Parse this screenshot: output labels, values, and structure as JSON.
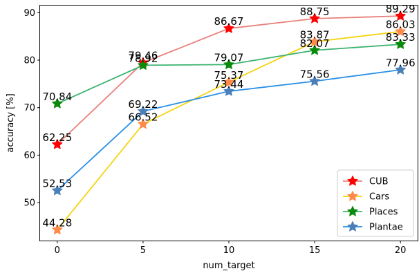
{
  "chart_data": {
    "type": "line",
    "x": [
      0,
      5,
      10,
      15,
      20
    ],
    "xlabel": "num_target",
    "ylabel": "accuracy [%]",
    "xlim": [
      -1,
      21
    ],
    "ylim": [
      42,
      91.5
    ],
    "xticks": [
      "0",
      "5",
      "10",
      "15",
      "20"
    ],
    "yticks": [
      "40",
      "50",
      "60",
      "70",
      "80",
      "90"
    ],
    "grid": false,
    "legend_position": "lower-right",
    "marker": "star",
    "series": [
      {
        "name": "CUB",
        "values": [
          62.25,
          79.46,
          86.67,
          88.75,
          89.29
        ],
        "labels": [
          "62.25",
          "79.46",
          "86.67",
          "88.75",
          "89.29"
        ],
        "line_color": "#e8807c",
        "marker_color": "#ff0000"
      },
      {
        "name": "Cars",
        "values": [
          44.28,
          66.52,
          75.37,
          83.87,
          86.03
        ],
        "labels": [
          "44.28",
          "66.52",
          "75.37",
          "83.87",
          "86.03"
        ],
        "line_color": "#f5d40f",
        "marker_color": "#ff8a4a"
      },
      {
        "name": "Places",
        "values": [
          70.84,
          78.92,
          79.07,
          82.07,
          83.33
        ],
        "labels": [
          "70.84",
          "78.92",
          "79.07",
          "82.07",
          "83.33"
        ],
        "line_color": "#3cb371",
        "marker_color": "#0a8a0a"
      },
      {
        "name": "Plantae",
        "values": [
          52.53,
          69.22,
          73.44,
          75.56,
          77.96
        ],
        "labels": [
          "52.53",
          "69.22",
          "73.44",
          "75.56",
          "77.96"
        ],
        "line_color": "#2a8fe6",
        "marker_color": "#4a7fb8"
      }
    ]
  }
}
